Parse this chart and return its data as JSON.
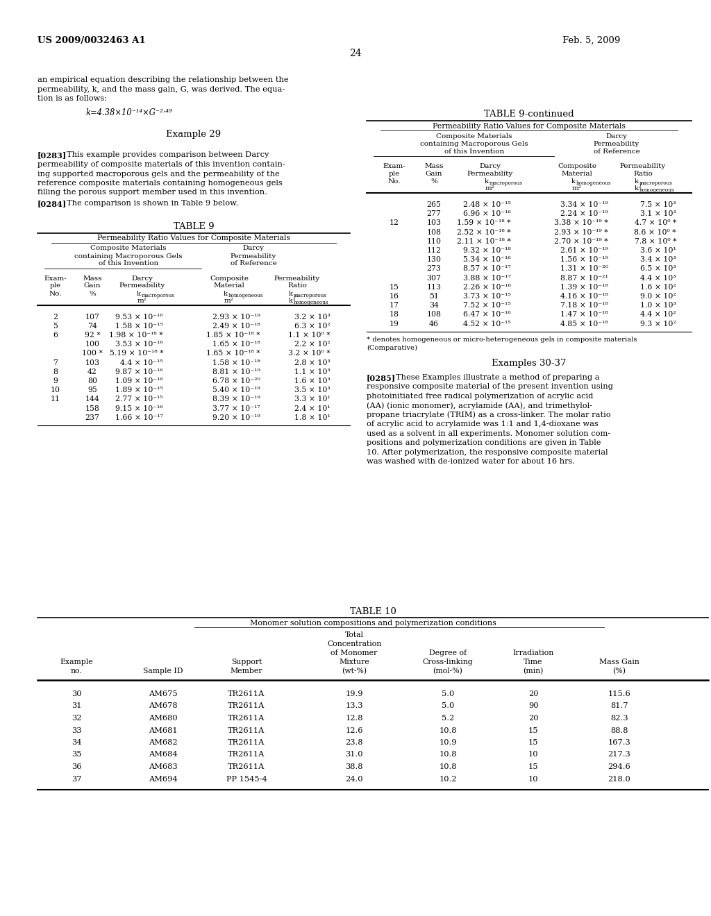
{
  "header_left": "US 2009/0032463 A1",
  "header_right": "Feb. 5, 2009",
  "page_number": "24",
  "bg_color": "#ffffff",
  "left_col_text": [
    "an empirical equation describing the relationship between the",
    "permeability, k, and the mass gain, G, was derived. The equa-",
    "tion is as follows:"
  ],
  "equation": "k=4.38×10⁻¹⁴×G⁻²·⁴⁹",
  "example29_title": "Example 29",
  "para283_label": "[0283]",
  "para283_lines": [
    "This example provides comparison between Darcy",
    "permeability of composite materials of this invention contain-",
    "ing supported macroporous gels and the permeability of the",
    "reference composite materials containing homogeneous gels",
    "filling the porous support member used in this invention."
  ],
  "para284_label": "[0284]",
  "para284_text": "The comparison is shown in Table 9 below.",
  "table9_title": "TABLE 9",
  "table9_subtitle": "Permeability Ratio Values for Composite Materials",
  "table9_data": [
    [
      "2",
      "107",
      "9.53 × 10⁻¹⁶",
      "2.93 × 10⁻¹⁹",
      "3.2 × 10³"
    ],
    [
      "5",
      "74",
      "1.58 × 10⁻¹⁵",
      "2.49 × 10⁻¹⁸",
      "6.3 × 10²"
    ],
    [
      "6",
      "92 *",
      "1.98 × 10⁻¹⁸ *",
      "1.85 × 10⁻¹⁸ *",
      "1.1 × 10⁰ *"
    ],
    [
      "",
      "100",
      "3.53 × 10⁻¹⁶",
      "1.65 × 10⁻¹⁸",
      "2.2 × 10²"
    ],
    [
      "",
      "100 *",
      "5.19 × 10⁻¹⁸ *",
      "1.65 × 10⁻¹⁸ *",
      "3.2 × 10⁰ *"
    ],
    [
      "7",
      "103",
      "4.4 × 10⁻¹⁵",
      "1.58 × 10⁻¹⁸",
      "2.8 × 10³"
    ],
    [
      "8",
      "42",
      "9.87 × 10⁻¹⁶",
      "8.81 × 10⁻¹⁹",
      "1.1 × 10³"
    ],
    [
      "9",
      "80",
      "1.09 × 10⁻¹⁶",
      "6.78 × 10⁻²⁰",
      "1.6 × 10³"
    ],
    [
      "10",
      "95",
      "1.89 × 10⁻¹⁵",
      "5.40 × 10⁻¹⁹",
      "3.5 × 10³"
    ],
    [
      "11",
      "144",
      "2.77 × 10⁻¹⁵",
      "8.39 × 10⁻¹⁹",
      "3.3 × 10¹"
    ],
    [
      "",
      "158",
      "9.15 × 10⁻¹⁶",
      "3.77 × 10⁻¹⁷",
      "2.4 × 10¹"
    ],
    [
      "",
      "237",
      "1.66 × 10⁻¹⁷",
      "9.20 × 10⁻¹⁹",
      "1.8 × 10¹"
    ]
  ],
  "table9cont_title": "TABLE 9-continued",
  "table9cont_subtitle": "Permeability Ratio Values for Composite Materials",
  "table9cont_data": [
    [
      "",
      "265",
      "2.48 × 10⁻¹⁵",
      "3.34 × 10⁻¹⁹",
      "7.5 × 10³"
    ],
    [
      "",
      "277",
      "6.96 × 10⁻¹⁶",
      "2.24 × 10⁻¹⁹",
      "3.1 × 10³"
    ],
    [
      "12",
      "103",
      "1.59 × 10⁻¹⁸ *",
      "3.38 × 10⁻¹⁹ *",
      "4.7 × 10⁰ *"
    ],
    [
      "",
      "108",
      "2.52 × 10⁻¹⁸ *",
      "2.93 × 10⁻¹⁹ *",
      "8.6 × 10⁰ *"
    ],
    [
      "",
      "110",
      "2.11 × 10⁻¹⁸ *",
      "2.70 × 10⁻¹⁹ *",
      "7.8 × 10⁰ *"
    ],
    [
      "",
      "112",
      "9.32 × 10⁻¹⁸",
      "2.61 × 10⁻¹⁹",
      "3.6 × 10¹"
    ],
    [
      "",
      "130",
      "5.34 × 10⁻¹⁶",
      "1.56 × 10⁻¹⁹",
      "3.4 × 10³"
    ],
    [
      "",
      "273",
      "8.57 × 10⁻¹⁷",
      "1.31 × 10⁻²⁰",
      "6.5 × 10³"
    ],
    [
      "",
      "307",
      "3.88 × 10⁻¹⁷",
      "8.87 × 10⁻²¹",
      "4.4 × 10³"
    ],
    [
      "15",
      "113",
      "2.26 × 10⁻¹⁶",
      "1.39 × 10⁻¹⁸",
      "1.6 × 10²"
    ],
    [
      "16",
      "51",
      "3.73 × 10⁻¹⁵",
      "4.16 × 10⁻¹⁸",
      "9.0 × 10²"
    ],
    [
      "17",
      "34",
      "7.52 × 10⁻¹⁵",
      "7.18 × 10⁻¹⁸",
      "1.0 × 10³"
    ],
    [
      "18",
      "108",
      "6.47 × 10⁻¹⁶",
      "1.47 × 10⁻¹⁸",
      "4.4 × 10²"
    ],
    [
      "19",
      "46",
      "4.52 × 10⁻¹⁵",
      "4.85 × 10⁻¹⁸",
      "9.3 × 10²"
    ]
  ],
  "footnote_line1": "* denotes homogeneous or micro-heterogeneous gels in composite materials",
  "footnote_line2": "(Comparative)",
  "examples3037_title": "Examples 30-37",
  "para285_label": "[0285]",
  "para285_lines": [
    "These Examples illustrate a method of preparing a",
    "responsive composite material of the present invention using",
    "photoinitiated free radical polymerization of acrylic acid",
    "(AA) (ionic monomer), acrylamide (AA), and trimethylol-",
    "propane triacrylate (TRIM) as a cross-linker. The molar ratio",
    "of acrylic acid to acrylamide was 1:1 and 1,4-dioxane was",
    "used as a solvent in all experiments. Monomer solution com-",
    "positions and polymerization conditions are given in Table",
    "10. After polymerization, the responsive composite material",
    "was washed with de-ionized water for about 16 hrs."
  ],
  "table10_title": "TABLE 10",
  "table10_subtitle": "Monomer solution compositions and polymerization conditions",
  "table10_data": [
    [
      "30",
      "AM675",
      "TR2611A",
      "19.9",
      "5.0",
      "20",
      "115.6"
    ],
    [
      "31",
      "AM678",
      "TR2611A",
      "13.3",
      "5.0",
      "90",
      "81.7"
    ],
    [
      "32",
      "AM680",
      "TR2611A",
      "12.8",
      "5.2",
      "20",
      "82.3"
    ],
    [
      "33",
      "AM681",
      "TR2611A",
      "12.6",
      "10.8",
      "15",
      "88.8"
    ],
    [
      "34",
      "AM682",
      "TR2611A",
      "23.8",
      "10.9",
      "15",
      "167.3"
    ],
    [
      "35",
      "AM684",
      "TR2611A",
      "31.0",
      "10.8",
      "10",
      "217.3"
    ],
    [
      "36",
      "AM683",
      "TR2611A",
      "38.8",
      "10.8",
      "15",
      "294.6"
    ],
    [
      "37",
      "AM694",
      "PP 1545-4",
      "24.0",
      "10.2",
      "10",
      "218.0"
    ]
  ]
}
